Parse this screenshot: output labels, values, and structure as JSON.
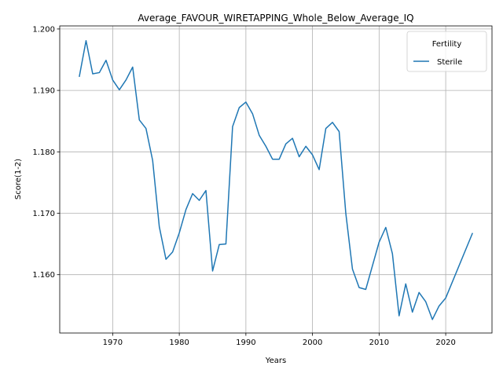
{
  "chart_data": {
    "type": "line",
    "title": "Average_FAVOUR_WIRETAPPING_Whole_Below_Average_IQ",
    "xlabel": "Years",
    "ylabel": "Score(1-2)",
    "xlim": [
      1962.05,
      2026.95
    ],
    "ylim": [
      1.1505,
      1.2005
    ],
    "xticks": [
      1970,
      1980,
      1990,
      2000,
      2010,
      2020
    ],
    "yticks": [
      1.16,
      1.17,
      1.18,
      1.19,
      1.2
    ],
    "yticks_labels": [
      "1.160",
      "1.170",
      "1.180",
      "1.190",
      "1.200"
    ],
    "grid": true,
    "legend": {
      "title": "Fertility",
      "placement": "top-right"
    },
    "series": [
      {
        "name": "Sterile",
        "color": "#1f77b4",
        "x": [
          1965,
          1966,
          1967,
          1968,
          1969,
          1970,
          1971,
          1972,
          1973,
          1974,
          1975,
          1976,
          1977,
          1978,
          1979,
          1980,
          1981,
          1982,
          1983,
          1984,
          1985,
          1986,
          1987,
          1988,
          1989,
          1990,
          1991,
          1992,
          1993,
          1994,
          1995,
          1996,
          1997,
          1998,
          1999,
          2000,
          2001,
          2002,
          2003,
          2004,
          2005,
          2006,
          2007,
          2008,
          2010,
          2011,
          2012,
          2013,
          2014,
          2015,
          2016,
          2017,
          2018,
          2019,
          2020,
          2024
        ],
        "y": [
          1.1923,
          1.1981,
          1.1927,
          1.1929,
          1.1949,
          1.1917,
          1.1901,
          1.1917,
          1.1938,
          1.1852,
          1.1838,
          1.1786,
          1.1678,
          1.1625,
          1.1637,
          1.1668,
          1.1706,
          1.1732,
          1.1721,
          1.1737,
          1.1606,
          1.1649,
          1.165,
          1.1841,
          1.1872,
          1.1881,
          1.1862,
          1.1827,
          1.1809,
          1.1788,
          1.1788,
          1.1813,
          1.1822,
          1.1792,
          1.1809,
          1.1795,
          1.1771,
          1.1838,
          1.1848,
          1.1833,
          1.17,
          1.1609,
          1.1579,
          1.1576,
          1.1653,
          1.1677,
          1.1634,
          1.1533,
          1.1585,
          1.1539,
          1.1571,
          1.1556,
          1.1527,
          1.1549,
          1.1562,
          1.1667
        ]
      }
    ]
  }
}
